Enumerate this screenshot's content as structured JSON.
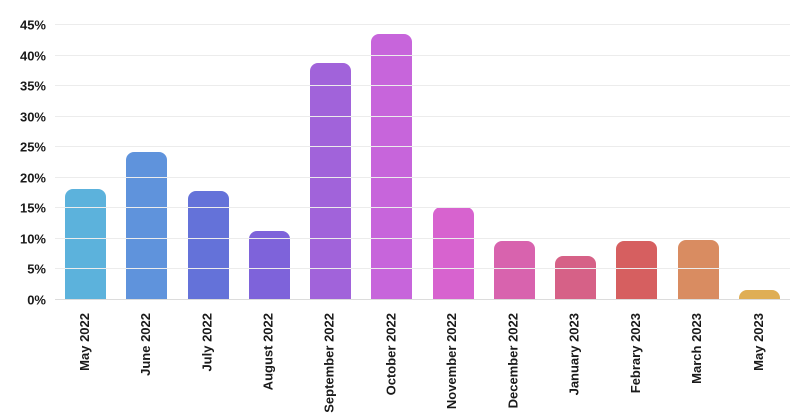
{
  "chart_data": {
    "type": "bar",
    "title": "",
    "xlabel": "",
    "ylabel": "",
    "categories": [
      "May 2022",
      "June 2022",
      "July 2022",
      "August 2022",
      "September 2022",
      "October 2022",
      "November 2022",
      "December 2022",
      "January 2023",
      "Febrary 2023",
      "March 2023",
      "May 2023"
    ],
    "values": [
      18.2,
      24.2,
      17.8,
      11.3,
      38.8,
      43.6,
      15.2,
      9.6,
      7.2,
      9.6,
      9.8,
      1.6
    ],
    "bar_colors": [
      "#5cb2dc",
      "#5f93dc",
      "#6472d9",
      "#7e63da",
      "#a163da",
      "#c765db",
      "#d763cf",
      "#d863ae",
      "#d66187",
      "#d65f60",
      "#d98c61",
      "#dfae55"
    ],
    "ylim": [
      0,
      45
    ],
    "y_tick_step": 5,
    "y_tick_suffix": "%",
    "y_tick_labels": [
      "0%",
      "5%",
      "10%",
      "15%",
      "20%",
      "25%",
      "30%",
      "35%",
      "40%",
      "45%"
    ],
    "grid": true,
    "legend": "none",
    "x_label_rotation_deg": -90
  },
  "colors": {
    "background": "#ffffff",
    "gridline": "#ececec",
    "baseline": "#dcdcdc",
    "axis_text": "#1a1a1a"
  }
}
